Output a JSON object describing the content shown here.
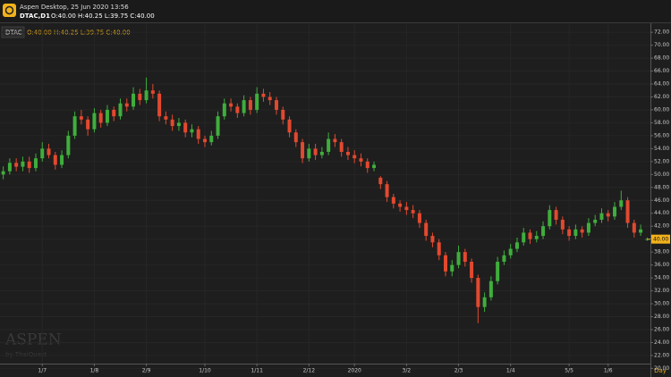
{
  "app_title": "Aspen Desktop, 25 Jun 2020 13:56",
  "watermark": {
    "brand": "ASPEN",
    "by": "by ThaiQuest"
  },
  "chart_data": {
    "type": "candlestick",
    "symbol_title": "DTAC,D1",
    "symbol": "DTAC",
    "ohlc_text": "O:40.00 H:40.25 L:39.75 C:40.00",
    "last_price": {
      "value": 40,
      "label": "40.00"
    },
    "period_label": "Day",
    "up_color": "#3fae3c",
    "down_color": "#e2492f",
    "grid": true,
    "xlim": [
      -0.5,
      99.5
    ],
    "xticks": [
      {
        "value": 6,
        "label": "1/7"
      },
      {
        "value": 14,
        "label": "1/8"
      },
      {
        "value": 22,
        "label": "2/9"
      },
      {
        "value": 31,
        "label": "1/10"
      },
      {
        "value": 39,
        "label": "1/11"
      },
      {
        "value": 47,
        "label": "2/12"
      },
      {
        "value": 54,
        "label": "2020"
      },
      {
        "value": 62,
        "label": "3/2"
      },
      {
        "value": 70,
        "label": "2/3"
      },
      {
        "value": 78,
        "label": "1/4"
      },
      {
        "value": 87,
        "label": "5/5"
      },
      {
        "value": 93,
        "label": "1/6"
      }
    ],
    "ylim": [
      19.5,
      73.4
    ],
    "yticks": [
      {
        "value": 20,
        "label": "20.00"
      },
      {
        "value": 22,
        "label": "22.00"
      },
      {
        "value": 24,
        "label": "24.00"
      },
      {
        "value": 26,
        "label": "26.00"
      },
      {
        "value": 28,
        "label": "28.00"
      },
      {
        "value": 30,
        "label": "30.00"
      },
      {
        "value": 32,
        "label": "32.00"
      },
      {
        "value": 34,
        "label": "34.00"
      },
      {
        "value": 36,
        "label": "36.00"
      },
      {
        "value": 38,
        "label": "38.00"
      },
      {
        "value": 40,
        "label": "40.00"
      },
      {
        "value": 42,
        "label": "42.00"
      },
      {
        "value": 44,
        "label": "44.00"
      },
      {
        "value": 46,
        "label": "46.00"
      },
      {
        "value": 48,
        "label": "48.00"
      },
      {
        "value": 50,
        "label": "50.00"
      },
      {
        "value": 52,
        "label": "52.00"
      },
      {
        "value": 54,
        "label": "54.00"
      },
      {
        "value": 56,
        "label": "56.00"
      },
      {
        "value": 58,
        "label": "58.00"
      },
      {
        "value": 60,
        "label": "60.00"
      },
      {
        "value": 62,
        "label": "62.00"
      },
      {
        "value": 64,
        "label": "64.00"
      },
      {
        "value": 66,
        "label": "66.00"
      },
      {
        "value": 68,
        "label": "68.00"
      },
      {
        "value": 70,
        "label": "70.00"
      },
      {
        "value": 72,
        "label": "72.00"
      }
    ],
    "open": [
      50,
      50.5,
      51.8,
      51.2,
      52,
      51,
      52.5,
      54,
      53,
      51.5,
      53,
      56,
      59,
      58.5,
      57,
      59.5,
      58,
      60,
      59,
      61,
      60.5,
      62.5,
      61.5,
      63,
      62.5,
      59,
      58.5,
      57.5,
      58,
      56.5,
      57,
      55.5,
      55,
      56,
      59,
      61,
      60.5,
      59.5,
      61.5,
      60,
      62.5,
      62,
      61.5,
      60,
      58.5,
      56.5,
      55,
      52.5,
      54,
      53,
      53.5,
      55.5,
      55,
      53.5,
      53,
      52.5,
      52,
      51,
      49.5,
      48.5,
      46.5,
      45.5,
      45,
      44.5,
      44,
      42.5,
      40.5,
      39.5,
      37.5,
      35,
      36,
      38,
      36.5,
      34,
      29.5,
      31,
      33.5,
      36.5,
      37.5,
      38.5,
      39.5,
      41,
      40,
      40.5,
      42,
      44.5,
      43,
      41.5,
      40.5,
      41.5,
      41,
      42.5,
      43,
      44,
      43.5,
      45,
      46,
      42.5,
      41,
      40
    ],
    "high": [
      51.25,
      52.5,
      52.5,
      52.75,
      52.75,
      53.25,
      55,
      54.75,
      53.5,
      53.75,
      56.75,
      59.75,
      60,
      59,
      60.25,
      60,
      60.75,
      60.5,
      61.75,
      61.75,
      63.5,
      63.25,
      65,
      64,
      63,
      59.75,
      59.25,
      58.75,
      58.5,
      57.75,
      57.5,
      56,
      56.75,
      59.75,
      61.75,
      61.75,
      61,
      62.25,
      62,
      63.5,
      63.25,
      62.75,
      62,
      60.5,
      59,
      57,
      55.5,
      54.75,
      54.75,
      54.25,
      56.5,
      56.25,
      55.5,
      54.25,
      53.75,
      53.25,
      52.5,
      52,
      49.75,
      49,
      47,
      46,
      45.75,
      45.25,
      44.5,
      43,
      41,
      40,
      38,
      36.75,
      39,
      38.5,
      37,
      34.5,
      31.75,
      34.25,
      37.25,
      38.25,
      39.25,
      40.25,
      41.75,
      41.5,
      41.25,
      42.75,
      45.25,
      45,
      43.5,
      42,
      42.25,
      42,
      43.25,
      43.75,
      44.75,
      44.5,
      45.75,
      47.5,
      46.5,
      43,
      42.25,
      40.25
    ],
    "low": [
      49.25,
      50,
      50.5,
      50.5,
      50.25,
      50.5,
      52,
      52.5,
      50.75,
      51,
      52.5,
      55.5,
      57.75,
      56,
      56.5,
      57.25,
      57.5,
      58.25,
      58.5,
      59.75,
      60,
      60.75,
      61,
      61.75,
      58.25,
      57.75,
      56.75,
      56.75,
      55.75,
      55.75,
      54.75,
      54.25,
      54.5,
      55.5,
      58.5,
      59.75,
      58.75,
      59,
      59.25,
      59.5,
      61.25,
      60.75,
      59.25,
      57.75,
      55.75,
      54.25,
      51.75,
      52,
      52.25,
      52.5,
      53,
      54.25,
      52.75,
      52.25,
      51.75,
      51.25,
      50.25,
      50.5,
      47.75,
      45.75,
      44.75,
      44.25,
      43.75,
      43.25,
      41.75,
      39.75,
      38.75,
      36.75,
      34.25,
      34.25,
      35.5,
      35.75,
      33.25,
      27,
      28.75,
      30.5,
      33,
      36,
      37,
      38,
      39,
      39.25,
      39.5,
      40,
      41.5,
      42.25,
      40.75,
      39.75,
      40,
      40.25,
      40.5,
      42,
      42.5,
      42.75,
      43,
      44.5,
      41.75,
      40.25,
      40.5,
      39.75
    ],
    "close": [
      50.5,
      51.8,
      51.2,
      52,
      51,
      52.5,
      54,
      53,
      51.5,
      53,
      56,
      59,
      58.5,
      57,
      59.5,
      58,
      60,
      59,
      61,
      60.5,
      62.5,
      61.5,
      63,
      62.5,
      59,
      58.5,
      57.5,
      58,
      56.5,
      57,
      55.5,
      55,
      56,
      59,
      61,
      60.5,
      59.5,
      61.5,
      60,
      62.5,
      62,
      61.5,
      60,
      58.5,
      56.5,
      55,
      52.5,
      54,
      53,
      53.5,
      55.5,
      55,
      53.5,
      53,
      52.5,
      52,
      51,
      51.5,
      48.5,
      46.5,
      45.5,
      45,
      44.5,
      44,
      42.5,
      40.5,
      39.5,
      37.5,
      35,
      36,
      38,
      36.5,
      34,
      29.5,
      31,
      33.5,
      36.5,
      37.5,
      38.5,
      39.5,
      41,
      40,
      40.5,
      42,
      44.5,
      43,
      41.5,
      40.5,
      41.5,
      41,
      42.5,
      43,
      44,
      43.5,
      45,
      46,
      42.5,
      41,
      41.5,
      40
    ]
  }
}
